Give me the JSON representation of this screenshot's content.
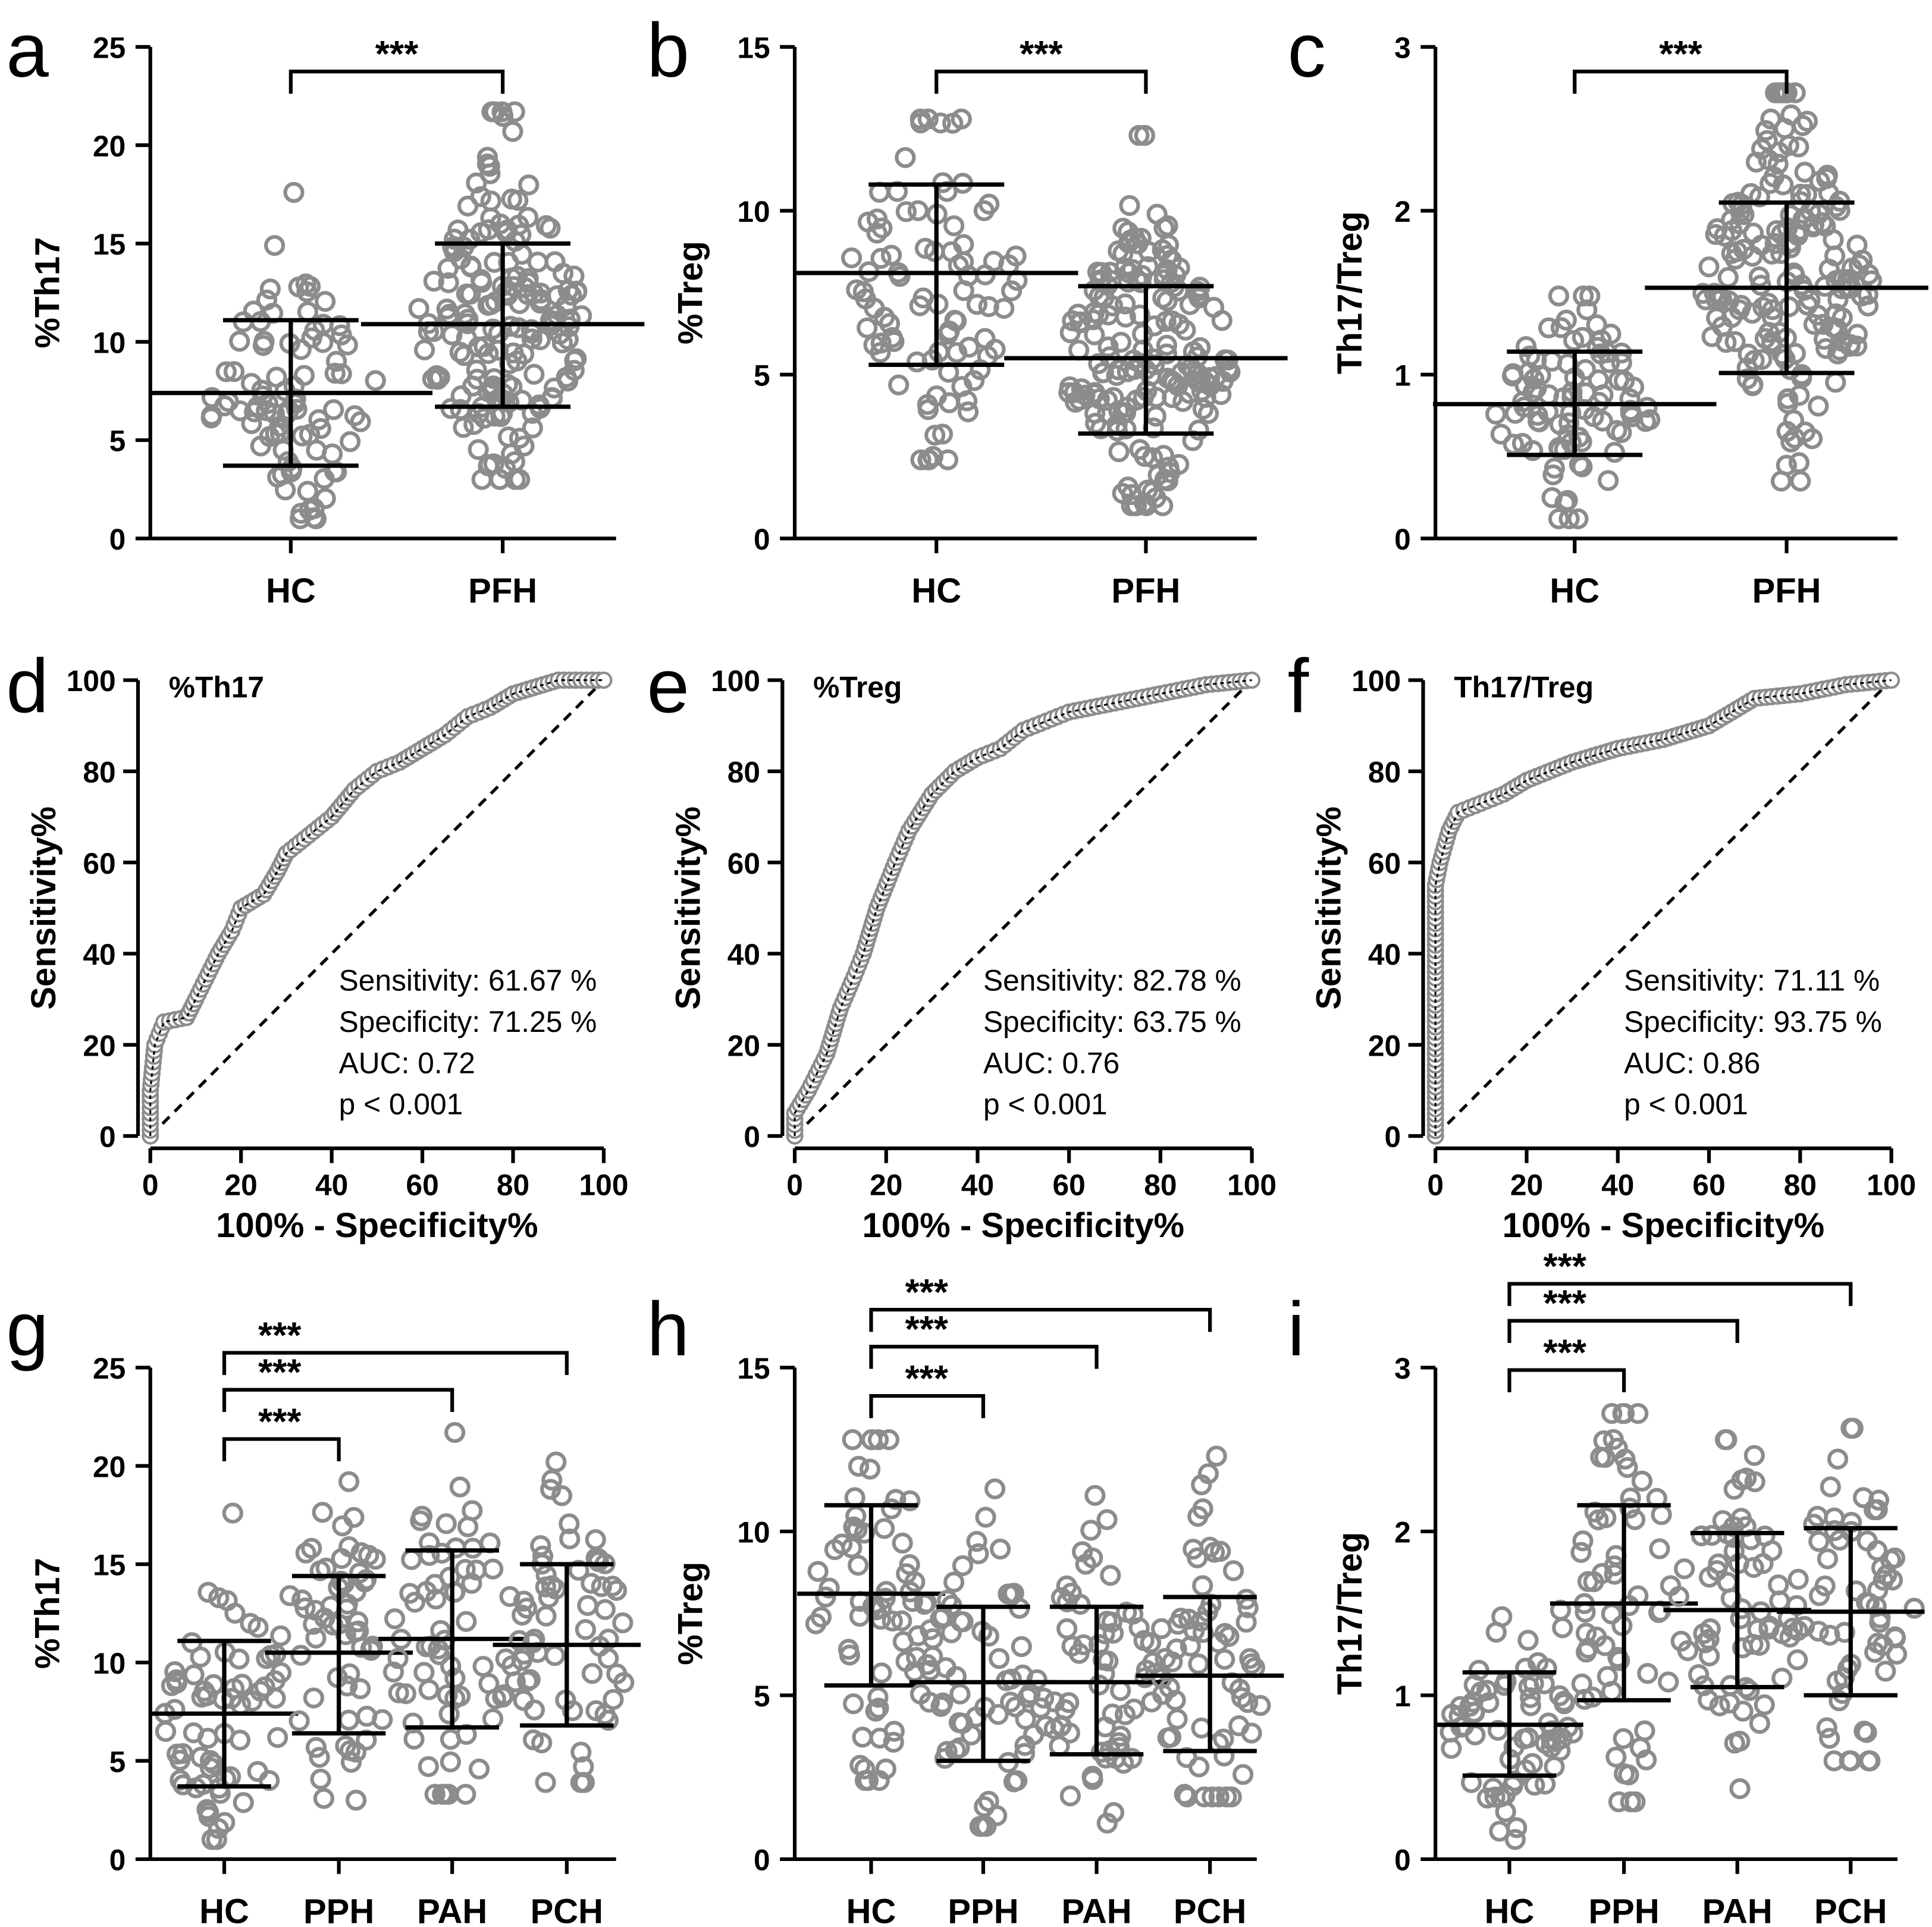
{
  "chart_data": [
    {
      "panel": "a",
      "type": "scatter",
      "ylabel": "%Th17",
      "ylim": [
        0,
        25
      ],
      "yticks": [
        0,
        5,
        10,
        15,
        20,
        25
      ],
      "categories": [
        "HC",
        "PFH"
      ],
      "groups": [
        {
          "name": "HC",
          "mean": 7.4,
          "sd_low": 3.7,
          "sd_high": 11.1,
          "range": [
            1.0,
            17.6
          ]
        },
        {
          "name": "PFH",
          "mean": 10.9,
          "sd_low": 6.7,
          "sd_high": 15.0,
          "range": [
            3.0,
            21.7
          ]
        }
      ],
      "brackets": [
        {
          "from": 0,
          "to": 1,
          "label": "***"
        }
      ]
    },
    {
      "panel": "b",
      "type": "scatter",
      "ylabel": "%Treg",
      "ylim": [
        0,
        15
      ],
      "yticks": [
        0,
        5,
        10,
        15
      ],
      "categories": [
        "HC",
        "PFH"
      ],
      "groups": [
        {
          "name": "HC",
          "mean": 8.1,
          "sd_low": 5.3,
          "sd_high": 10.8,
          "range": [
            2.4,
            12.8
          ]
        },
        {
          "name": "PFH",
          "mean": 5.5,
          "sd_low": 3.2,
          "sd_high": 7.7,
          "range": [
            1.0,
            12.3
          ]
        }
      ],
      "brackets": [
        {
          "from": 0,
          "to": 1,
          "label": "***"
        }
      ]
    },
    {
      "panel": "c",
      "type": "scatter",
      "ylabel": "Th17/Treg",
      "ylim": [
        0,
        3
      ],
      "yticks": [
        0,
        1,
        2,
        3
      ],
      "categories": [
        "HC",
        "PFH"
      ],
      "groups": [
        {
          "name": "HC",
          "mean": 0.82,
          "sd_low": 0.51,
          "sd_high": 1.14,
          "range": [
            0.12,
            1.48
          ]
        },
        {
          "name": "PFH",
          "mean": 1.53,
          "sd_low": 1.01,
          "sd_high": 2.05,
          "range": [
            0.35,
            2.72
          ]
        }
      ],
      "brackets": [
        {
          "from": 0,
          "to": 1,
          "label": "***"
        }
      ]
    },
    {
      "panel": "d",
      "type": "roc",
      "title": "%Th17",
      "xlabel": "100% - Specificity%",
      "ylabel": "Sensitivity%",
      "xticks": [
        0,
        20,
        40,
        60,
        80,
        100
      ],
      "yticks": [
        0,
        20,
        40,
        60,
        80,
        100
      ],
      "stats": [
        "Sensitivity: 61.67 %",
        "Specificity: 71.25 %",
        "AUC: 0.72",
        "p < 0.001"
      ],
      "curve": [
        [
          0,
          0
        ],
        [
          0,
          10
        ],
        [
          1,
          20
        ],
        [
          3,
          25
        ],
        [
          8,
          26
        ],
        [
          10,
          30
        ],
        [
          15,
          40
        ],
        [
          18,
          45
        ],
        [
          20,
          50
        ],
        [
          25,
          53
        ],
        [
          28,
          58
        ],
        [
          30,
          62
        ],
        [
          35,
          66
        ],
        [
          40,
          70
        ],
        [
          45,
          76
        ],
        [
          50,
          80
        ],
        [
          55,
          82
        ],
        [
          60,
          85
        ],
        [
          65,
          88
        ],
        [
          70,
          92
        ],
        [
          75,
          94
        ],
        [
          80,
          97
        ],
        [
          90,
          100
        ],
        [
          100,
          100
        ]
      ]
    },
    {
      "panel": "e",
      "type": "roc",
      "title": "%Treg",
      "xlabel": "100% - Specificity%",
      "ylabel": "Sensitivity%",
      "xticks": [
        0,
        20,
        40,
        60,
        80,
        100
      ],
      "yticks": [
        0,
        20,
        40,
        60,
        80,
        100
      ],
      "stats": [
        "Sensitivity: 82.78 %",
        "Specificity: 63.75 %",
        "AUC: 0.76",
        "p < 0.001"
      ],
      "curve": [
        [
          0,
          0
        ],
        [
          0,
          5
        ],
        [
          3,
          10
        ],
        [
          7,
          18
        ],
        [
          10,
          28
        ],
        [
          13,
          35
        ],
        [
          15,
          40
        ],
        [
          18,
          50
        ],
        [
          22,
          60
        ],
        [
          25,
          67
        ],
        [
          30,
          75
        ],
        [
          35,
          80
        ],
        [
          40,
          83
        ],
        [
          45,
          85
        ],
        [
          50,
          89
        ],
        [
          55,
          91
        ],
        [
          60,
          93
        ],
        [
          70,
          95
        ],
        [
          80,
          97
        ],
        [
          90,
          99
        ],
        [
          100,
          100
        ]
      ]
    },
    {
      "panel": "f",
      "type": "roc",
      "title": "Th17/Treg",
      "xlabel": "100% - Specificity%",
      "ylabel": "Sensitivity%",
      "xticks": [
        0,
        20,
        40,
        60,
        80,
        100
      ],
      "yticks": [
        0,
        20,
        40,
        60,
        80,
        100
      ],
      "stats": [
        "Sensitivity: 71.11 %",
        "Specificity: 93.75 %",
        "AUC: 0.86",
        "p < 0.001"
      ],
      "curve": [
        [
          0,
          0
        ],
        [
          0,
          55
        ],
        [
          1,
          60
        ],
        [
          3,
          67
        ],
        [
          5,
          71
        ],
        [
          10,
          73
        ],
        [
          15,
          75
        ],
        [
          20,
          78
        ],
        [
          30,
          82
        ],
        [
          40,
          85
        ],
        [
          50,
          87
        ],
        [
          60,
          90
        ],
        [
          65,
          93
        ],
        [
          70,
          96
        ],
        [
          80,
          97
        ],
        [
          90,
          99
        ],
        [
          100,
          100
        ]
      ]
    },
    {
      "panel": "g",
      "type": "scatter",
      "ylabel": "%Th17",
      "ylim": [
        0,
        25
      ],
      "yticks": [
        0,
        5,
        10,
        15,
        20,
        25
      ],
      "categories": [
        "HC",
        "PPH",
        "PAH",
        "PCH"
      ],
      "groups": [
        {
          "name": "HC",
          "mean": 7.4,
          "sd_low": 3.7,
          "sd_high": 11.1,
          "range": [
            1.0,
            17.6
          ]
        },
        {
          "name": "PPH",
          "mean": 10.5,
          "sd_low": 6.4,
          "sd_high": 14.4,
          "range": [
            3.0,
            19.2
          ]
        },
        {
          "name": "PAH",
          "mean": 11.2,
          "sd_low": 6.7,
          "sd_high": 15.7,
          "range": [
            3.3,
            21.7
          ]
        },
        {
          "name": "PCH",
          "mean": 10.9,
          "sd_low": 6.8,
          "sd_high": 15.0,
          "range": [
            3.9,
            20.2
          ]
        }
      ],
      "brackets": [
        {
          "from": 0,
          "to": 1,
          "label": "***"
        },
        {
          "from": 0,
          "to": 2,
          "label": "***"
        },
        {
          "from": 0,
          "to": 3,
          "label": "***"
        }
      ]
    },
    {
      "panel": "h",
      "type": "scatter",
      "ylabel": "%Treg",
      "ylim": [
        0,
        15
      ],
      "yticks": [
        0,
        5,
        10,
        15
      ],
      "categories": [
        "HC",
        "PPH",
        "PAH",
        "PCH"
      ],
      "groups": [
        {
          "name": "HC",
          "mean": 8.1,
          "sd_low": 5.3,
          "sd_high": 10.8,
          "range": [
            2.4,
            12.8
          ]
        },
        {
          "name": "PPH",
          "mean": 5.4,
          "sd_low": 3.0,
          "sd_high": 7.7,
          "range": [
            1.0,
            11.3
          ]
        },
        {
          "name": "PAH",
          "mean": 5.4,
          "sd_low": 3.2,
          "sd_high": 7.7,
          "range": [
            1.1,
            11.1
          ]
        },
        {
          "name": "PCH",
          "mean": 5.6,
          "sd_low": 3.3,
          "sd_high": 8.0,
          "range": [
            1.9,
            12.3
          ]
        }
      ],
      "brackets": [
        {
          "from": 0,
          "to": 1,
          "label": "***"
        },
        {
          "from": 0,
          "to": 2,
          "label": "***"
        },
        {
          "from": 0,
          "to": 3,
          "label": "***"
        }
      ]
    },
    {
      "panel": "i",
      "type": "scatter",
      "ylabel": "Th17/Treg",
      "ylim": [
        0,
        3
      ],
      "yticks": [
        0,
        1,
        2,
        3
      ],
      "categories": [
        "HC",
        "PPH",
        "PAH",
        "PCH"
      ],
      "groups": [
        {
          "name": "HC",
          "mean": 0.82,
          "sd_low": 0.51,
          "sd_high": 1.14,
          "range": [
            0.12,
            1.48
          ]
        },
        {
          "name": "PPH",
          "mean": 1.56,
          "sd_low": 0.97,
          "sd_high": 2.16,
          "range": [
            0.35,
            2.72
          ]
        },
        {
          "name": "PAH",
          "mean": 1.52,
          "sd_low": 1.05,
          "sd_high": 1.99,
          "range": [
            0.43,
            2.56
          ]
        },
        {
          "name": "PCH",
          "mean": 1.51,
          "sd_low": 1.0,
          "sd_high": 2.02,
          "range": [
            0.6,
            2.63
          ]
        }
      ],
      "brackets": [
        {
          "from": 0,
          "to": 1,
          "label": "***"
        },
        {
          "from": 0,
          "to": 2,
          "label": "***"
        },
        {
          "from": 0,
          "to": 3,
          "label": "***"
        }
      ]
    }
  ],
  "colors": {
    "dot": "#8c8c8c",
    "line": "#000000"
  }
}
